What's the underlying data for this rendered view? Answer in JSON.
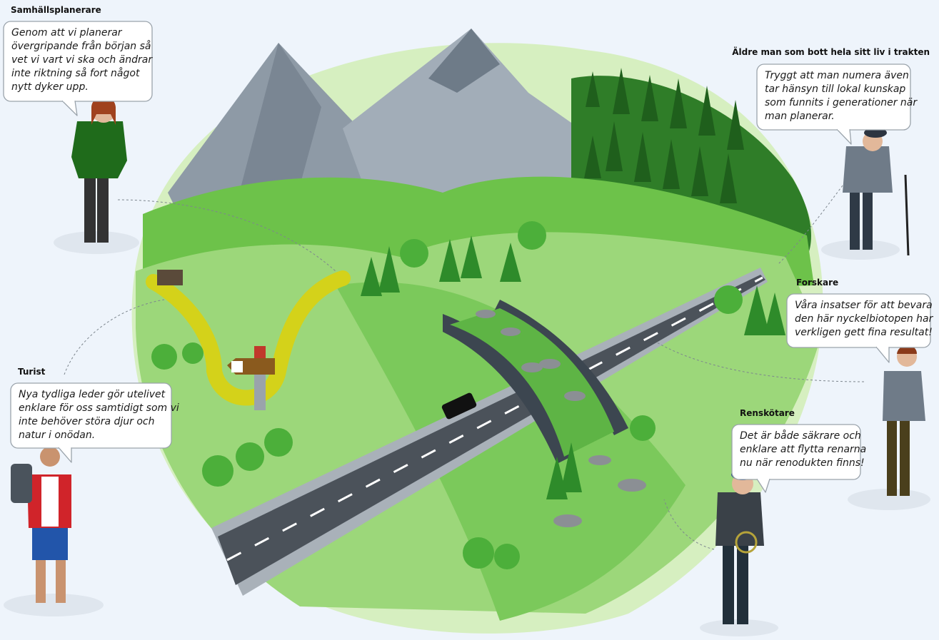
{
  "personas": [
    {
      "role": "Samhällsplanerare",
      "quote": [
        "Genom att vi planerar",
        "övergripande från början så",
        "vet vi vart vi ska och ändrar",
        "inte riktning så fort något",
        "nytt dyker upp."
      ]
    },
    {
      "role": "Äldre man som bott hela sitt liv i trakten",
      "quote": [
        "Tryggt att man numera även",
        "tar hänsyn till lokal kunskap",
        "som funnits i generationer när",
        "man planerar."
      ]
    },
    {
      "role": "Forskare",
      "quote": [
        "Våra insatser för att bevara",
        "den här nyckelbiotopen har",
        "verkligen gett fina resultat!"
      ]
    },
    {
      "role": "Turist",
      "quote": [
        "Nya tydliga leder gör utelivet",
        "enklare för oss samtidigt som vi",
        "inte behöver störa djur och",
        "natur i onödan."
      ]
    },
    {
      "role": "Renskötare",
      "quote": [
        "Det är både säkrare och",
        "enklare att flytta renarna",
        "nu när renodukten finns!"
      ]
    }
  ]
}
